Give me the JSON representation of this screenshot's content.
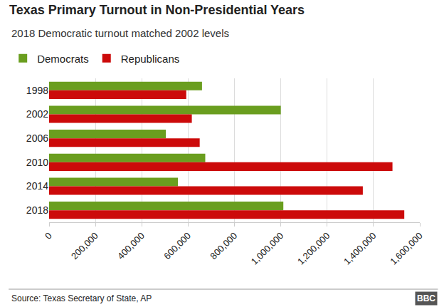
{
  "chart_data": {
    "type": "bar",
    "orientation": "horizontal",
    "title": "Texas Primary Turnout in Non-Presidential Years",
    "subtitle": "2018 Democratic turnout matched 2002 levels",
    "source": "Source: Texas Secretary of State, AP",
    "logo": "BBC",
    "categories": [
      "1998",
      "2002",
      "2006",
      "2010",
      "2014",
      "2018"
    ],
    "series": [
      {
        "name": "Democrats",
        "color": "#6a9e1f",
        "values": [
          660000,
          1000000,
          504000,
          674000,
          556000,
          1011000
        ]
      },
      {
        "name": "Republicans",
        "color": "#cc0a0a",
        "values": [
          592000,
          616000,
          650000,
          1482000,
          1354000,
          1533000
        ]
      }
    ],
    "xlim": [
      0,
      1600000
    ],
    "xticks": [
      0,
      {
        "value": 200000,
        "label": "200,000"
      },
      {
        "value": 400000,
        "label": "400,000"
      },
      {
        "value": 600000,
        "label": "600,000"
      },
      {
        "value": 800000,
        "label": "800,000"
      },
      {
        "value": 1000000,
        "label": "1,000,000"
      },
      {
        "value": 1200000,
        "label": "1,200,000"
      },
      {
        "value": 1400000,
        "label": "1,400,000"
      },
      {
        "value": 1600000,
        "label": "1,600,000"
      }
    ],
    "grid": true,
    "legend": "top-left"
  }
}
